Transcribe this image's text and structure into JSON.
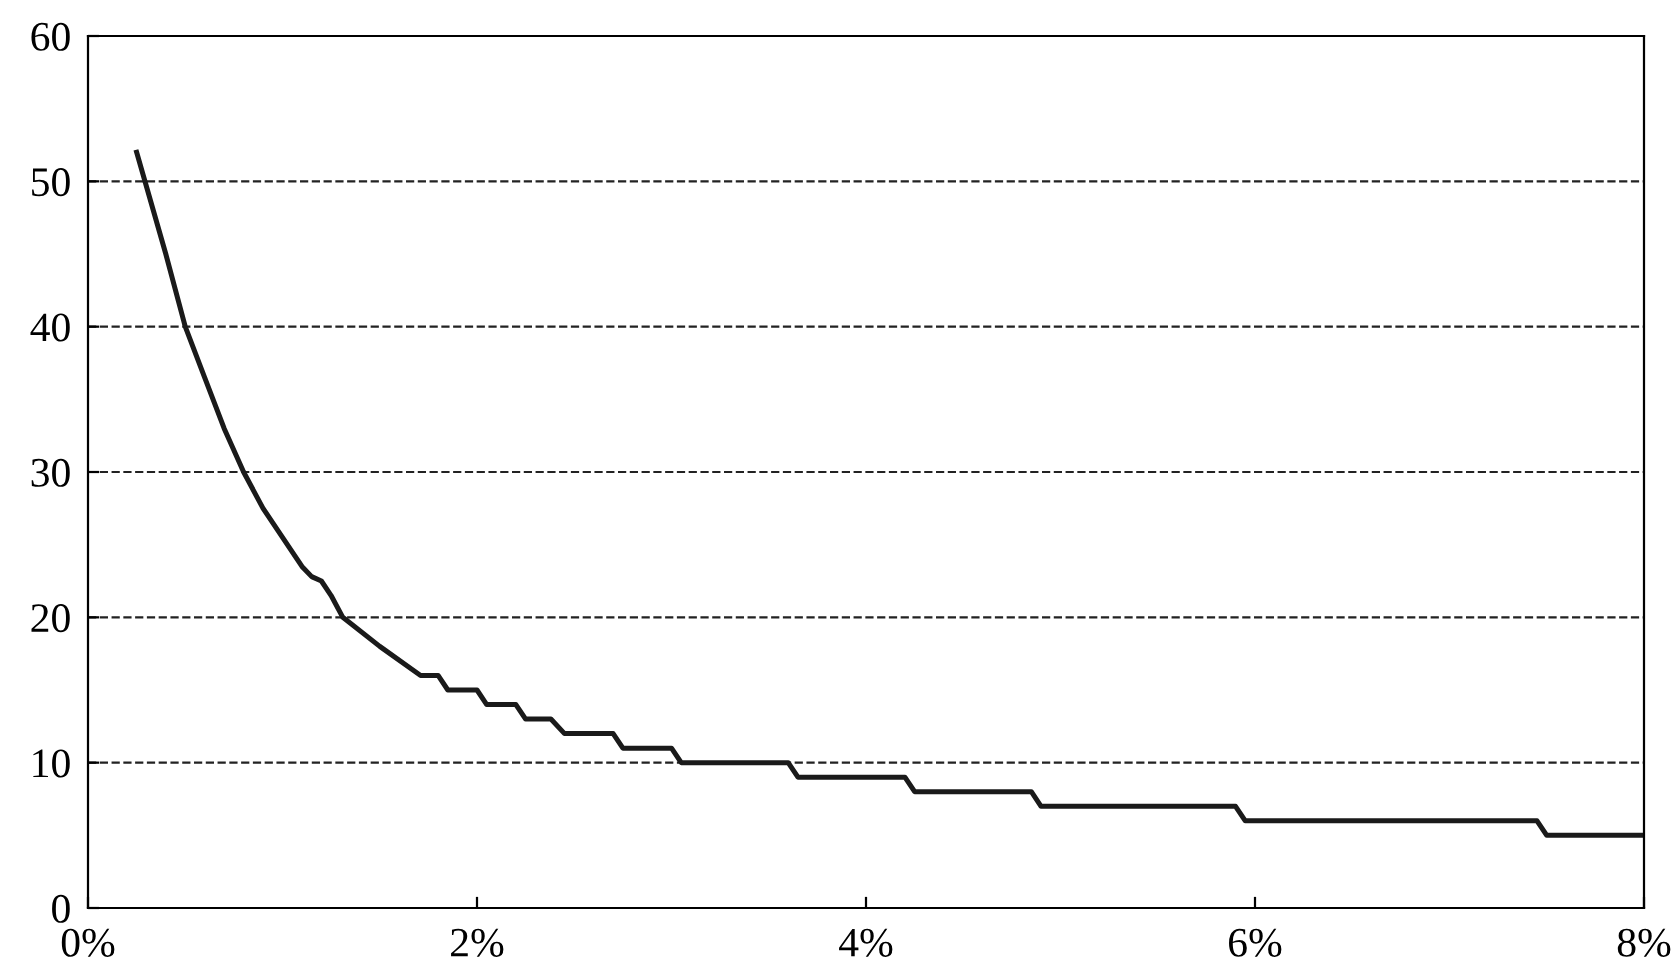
{
  "chart_data": {
    "type": "line",
    "x": [
      0.25,
      0.4,
      0.5,
      0.6,
      0.7,
      0.8,
      0.9,
      1.0,
      1.1,
      1.15,
      1.2,
      1.25,
      1.31,
      1.5,
      1.71,
      1.8,
      1.85,
      2.0,
      2.05,
      2.2,
      2.25,
      2.38,
      2.45,
      2.7,
      2.75,
      3.0,
      3.05,
      3.6,
      3.65,
      4.2,
      4.25,
      4.85,
      4.9,
      5.9,
      5.95,
      7.45,
      7.5,
      8.0
    ],
    "series": [
      {
        "color": "#1a1a1a",
        "values": [
          52,
          45,
          40,
          36.5,
          33,
          30,
          27.5,
          25.5,
          23.5,
          22.8,
          22.5,
          21.5,
          20,
          18,
          16,
          16,
          15,
          15,
          14,
          14,
          13,
          13,
          12,
          12,
          11,
          11,
          10,
          10,
          9,
          9,
          8,
          8,
          7,
          7,
          6,
          6,
          5,
          5
        ]
      }
    ],
    "xlim": [
      0,
      8
    ],
    "xticks": [
      {
        "value": 0,
        "label": "0%"
      },
      {
        "value": 2,
        "label": "2%"
      },
      {
        "value": 4,
        "label": "4%"
      },
      {
        "value": 6,
        "label": "6%"
      },
      {
        "value": 8,
        "label": "8%"
      }
    ],
    "ylim": [
      0,
      60
    ],
    "yticks": [
      0,
      10,
      20,
      30,
      40,
      50,
      60
    ],
    "grid": "y",
    "line_style": "solid",
    "marker": "none"
  }
}
